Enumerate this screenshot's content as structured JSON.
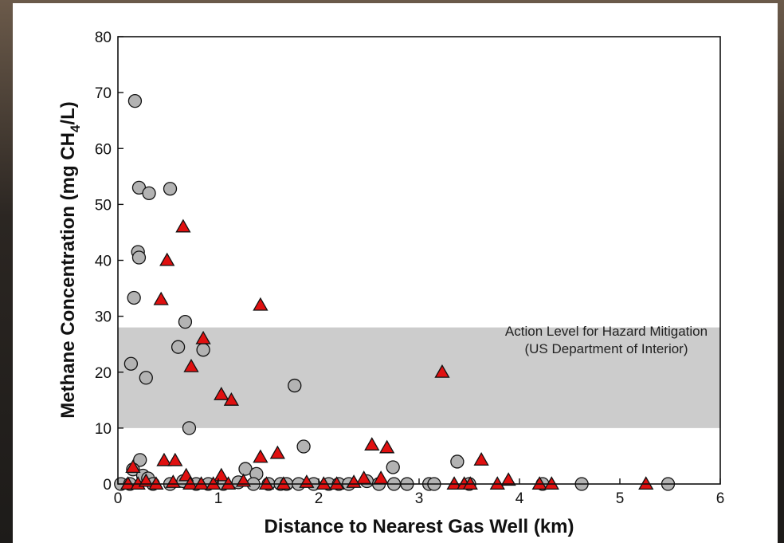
{
  "chart_data": {
    "type": "scatter",
    "xlabel": "Distance to Nearest Gas Well (km)",
    "ylabel_parts": [
      "Methane Concentration (mg CH",
      "4",
      "/L)"
    ],
    "xlim": [
      0,
      6
    ],
    "ylim": [
      0,
      80
    ],
    "x_ticks": [
      "0",
      "1",
      "2",
      "3",
      "4",
      "5",
      "6"
    ],
    "y_ticks": [
      "0",
      "10",
      "20",
      "30",
      "40",
      "50",
      "60",
      "70",
      "80"
    ],
    "grid": false,
    "band": {
      "y_range": [
        10,
        28
      ],
      "color": "#cccccc",
      "label_line1": "Action Level for Hazard Mitigation",
      "label_line2": "(US Department of Interior)"
    },
    "series": [
      {
        "marker": "circle",
        "color": "#b3b3b3",
        "points": [
          [
            0.17,
            68.5
          ],
          [
            0.21,
            53
          ],
          [
            0.31,
            52
          ],
          [
            0.52,
            52.8
          ],
          [
            0.2,
            41.5
          ],
          [
            0.21,
            40.5
          ],
          [
            0.16,
            33.3
          ],
          [
            0.67,
            29
          ],
          [
            0.13,
            21.5
          ],
          [
            0.28,
            19
          ],
          [
            0.6,
            24.5
          ],
          [
            0.85,
            24
          ],
          [
            0.71,
            10
          ],
          [
            1.76,
            17.6
          ],
          [
            1.85,
            6.7
          ],
          [
            0.22,
            4.3
          ],
          [
            0.15,
            2.6
          ],
          [
            0.25,
            1.5
          ],
          [
            0.3,
            1
          ],
          [
            1.27,
            2.7
          ],
          [
            1.38,
            1.8
          ],
          [
            2.74,
            3
          ],
          [
            3.38,
            4
          ],
          [
            0.03,
            0
          ],
          [
            0.12,
            0
          ],
          [
            0.35,
            0
          ],
          [
            0.52,
            0
          ],
          [
            0.65,
            0.5
          ],
          [
            0.78,
            0
          ],
          [
            0.9,
            0
          ],
          [
            1.05,
            0
          ],
          [
            1.2,
            0.3
          ],
          [
            1.35,
            0
          ],
          [
            1.5,
            0
          ],
          [
            1.62,
            0
          ],
          [
            1.68,
            0
          ],
          [
            1.8,
            0
          ],
          [
            1.95,
            0
          ],
          [
            2.1,
            0
          ],
          [
            2.2,
            0
          ],
          [
            2.3,
            0
          ],
          [
            2.48,
            0.5
          ],
          [
            2.6,
            0
          ],
          [
            2.75,
            0
          ],
          [
            2.88,
            0
          ],
          [
            3.1,
            0
          ],
          [
            3.15,
            0
          ],
          [
            3.5,
            0
          ],
          [
            4.23,
            0
          ],
          [
            4.62,
            0
          ],
          [
            5.48,
            0
          ]
        ]
      },
      {
        "marker": "triangle",
        "color": "#e01010",
        "points": [
          [
            0.65,
            46
          ],
          [
            0.49,
            40
          ],
          [
            0.43,
            33
          ],
          [
            1.42,
            32
          ],
          [
            0.85,
            26
          ],
          [
            0.73,
            21
          ],
          [
            1.03,
            16
          ],
          [
            1.13,
            15
          ],
          [
            3.23,
            20
          ],
          [
            0.15,
            3
          ],
          [
            0.46,
            4.2
          ],
          [
            0.57,
            4.2
          ],
          [
            1.42,
            4.8
          ],
          [
            1.59,
            5.5
          ],
          [
            2.53,
            7
          ],
          [
            2.68,
            6.5
          ],
          [
            3.62,
            4.3
          ],
          [
            0.68,
            1.5
          ],
          [
            1.03,
            1.5
          ],
          [
            2.45,
            1
          ],
          [
            3.89,
            0.7
          ],
          [
            0.1,
            0
          ],
          [
            0.2,
            0
          ],
          [
            0.28,
            0.5
          ],
          [
            0.38,
            0
          ],
          [
            0.55,
            0.3
          ],
          [
            0.72,
            0
          ],
          [
            0.83,
            0
          ],
          [
            0.95,
            0
          ],
          [
            1.1,
            0
          ],
          [
            1.25,
            0.5
          ],
          [
            1.48,
            0
          ],
          [
            1.65,
            0
          ],
          [
            1.88,
            0.3
          ],
          [
            2.05,
            0
          ],
          [
            2.18,
            0
          ],
          [
            2.35,
            0.3
          ],
          [
            2.62,
            1
          ],
          [
            3.35,
            0
          ],
          [
            3.45,
            0
          ],
          [
            3.51,
            0
          ],
          [
            3.78,
            0
          ],
          [
            4.2,
            0
          ],
          [
            4.32,
            0
          ],
          [
            5.26,
            0
          ]
        ]
      }
    ]
  }
}
